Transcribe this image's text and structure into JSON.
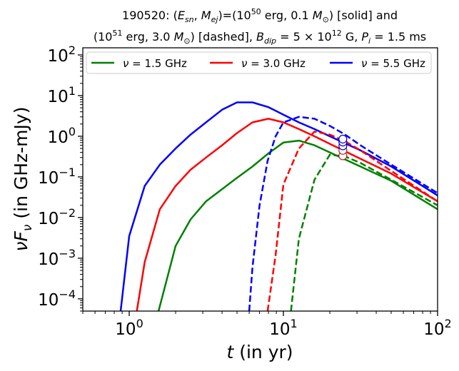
{
  "chart_data": {
    "type": "line",
    "title_line1": "190520: (E_sn, M_ej)=(10^50 erg, 0.1 M_sun) [solid] and",
    "title_line2": "(10^51 erg, 3.0 M_sun) [dashed], B_dip = 5×10^12 G, P_i = 1.5 ms",
    "xlabel": "t (in yr)",
    "ylabel": "νF_ν (in GHz-mJy)",
    "xscale": "log",
    "yscale": "log",
    "xlim": [
      0.5,
      100
    ],
    "ylim": [
      5e-05,
      150
    ],
    "xticks": [
      {
        "value": 1,
        "base": "10",
        "exp": "0"
      },
      {
        "value": 10,
        "base": "10",
        "exp": "1"
      },
      {
        "value": 100,
        "base": "10",
        "exp": "2"
      }
    ],
    "yticks": [
      {
        "value": 0.0001,
        "base": "10",
        "exp": "−4"
      },
      {
        "value": 0.001,
        "base": "10",
        "exp": "−3"
      },
      {
        "value": 0.01,
        "base": "10",
        "exp": "−2"
      },
      {
        "value": 0.1,
        "base": "10",
        "exp": "−1"
      },
      {
        "value": 1,
        "base": "10",
        "exp": "0"
      },
      {
        "value": 10,
        "base": "10",
        "exp": "1"
      },
      {
        "value": 100,
        "base": "10",
        "exp": "2"
      }
    ],
    "legend": {
      "placement": "top",
      "entries": [
        {
          "label": "ν = 1.5 GHz",
          "color": "#008000"
        },
        {
          "label": "ν = 3.0 GHz",
          "color": "#ff0000"
        },
        {
          "label": "ν = 5.5 GHz",
          "color": "#0000ff"
        }
      ]
    },
    "series": [
      {
        "name": "1.5 GHz solid",
        "color": "#008000",
        "style": "solid",
        "x": [
          1.55,
          2.0,
          2.5,
          3.15,
          4.0,
          5.0,
          6.3,
          8.0,
          10.0,
          12.6,
          15.9,
          20.0,
          31.6,
          50.1,
          100
        ],
        "y": [
          5e-05,
          0.002,
          0.009,
          0.025,
          0.05,
          0.095,
          0.18,
          0.38,
          0.7,
          0.78,
          0.6,
          0.4,
          0.18,
          0.08,
          0.016
        ]
      },
      {
        "name": "3.0 GHz solid",
        "color": "#ff0000",
        "style": "solid",
        "x": [
          1.12,
          1.26,
          1.58,
          2.0,
          2.5,
          3.15,
          4.0,
          5.0,
          6.3,
          8.0,
          10.0,
          12.6,
          15.9,
          20.0,
          31.6,
          50.1,
          100
        ],
        "y": [
          5e-05,
          0.0008,
          0.016,
          0.06,
          0.15,
          0.3,
          0.6,
          1.2,
          2.2,
          2.7,
          2.2,
          1.5,
          1.0,
          0.65,
          0.28,
          0.12,
          0.025
        ]
      },
      {
        "name": "5.5 GHz solid",
        "color": "#0000ff",
        "style": "solid",
        "x": [
          0.88,
          1.0,
          1.26,
          1.58,
          2.0,
          2.5,
          3.15,
          4.0,
          5.0,
          6.3,
          8.0,
          10.0,
          12.6,
          15.9,
          20.0,
          31.6,
          50.1,
          100
        ],
        "y": [
          5e-05,
          0.0035,
          0.06,
          0.2,
          0.5,
          1.1,
          2.2,
          4.5,
          6.8,
          6.8,
          5.2,
          3.4,
          2.2,
          1.5,
          1.0,
          0.45,
          0.18,
          0.035
        ]
      },
      {
        "name": "1.5 GHz dashed",
        "color": "#008000",
        "style": "dashed",
        "x": [
          11.2,
          12.6,
          15.9,
          20.0,
          25.1,
          31.6,
          50.1,
          100
        ],
        "y": [
          5e-05,
          0.003,
          0.085,
          0.35,
          0.32,
          0.22,
          0.085,
          0.02
        ]
      },
      {
        "name": "3.0 GHz dashed",
        "color": "#ff0000",
        "style": "dashed",
        "x": [
          7.9,
          8.9,
          10.0,
          12.6,
          15.9,
          20.0,
          25.1,
          31.6,
          50.1,
          100
        ],
        "y": [
          5e-05,
          0.0012,
          0.065,
          0.5,
          1.3,
          1.1,
          0.75,
          0.45,
          0.14,
          0.025
        ]
      },
      {
        "name": "5.5 GHz dashed",
        "color": "#0000ff",
        "style": "dashed",
        "x": [
          6.0,
          6.3,
          7.0,
          7.9,
          8.9,
          10.0,
          12.6,
          15.9,
          20.0,
          25.1,
          31.6,
          50.1,
          100
        ],
        "y": [
          5e-05,
          0.0006,
          0.02,
          0.25,
          1.0,
          2.2,
          3.0,
          2.7,
          1.8,
          1.1,
          0.6,
          0.2,
          0.04
        ]
      }
    ],
    "markers": [
      {
        "x": 24.3,
        "y": 0.33,
        "color": "#b22222"
      },
      {
        "x": 24.3,
        "y": 0.45,
        "color": "#b22222"
      },
      {
        "x": 24.3,
        "y": 0.58,
        "color": "#0000cd"
      },
      {
        "x": 24.3,
        "y": 0.72,
        "color": "#0000cd"
      },
      {
        "x": 24.3,
        "y": 0.85,
        "color": "#0000cd"
      }
    ]
  }
}
